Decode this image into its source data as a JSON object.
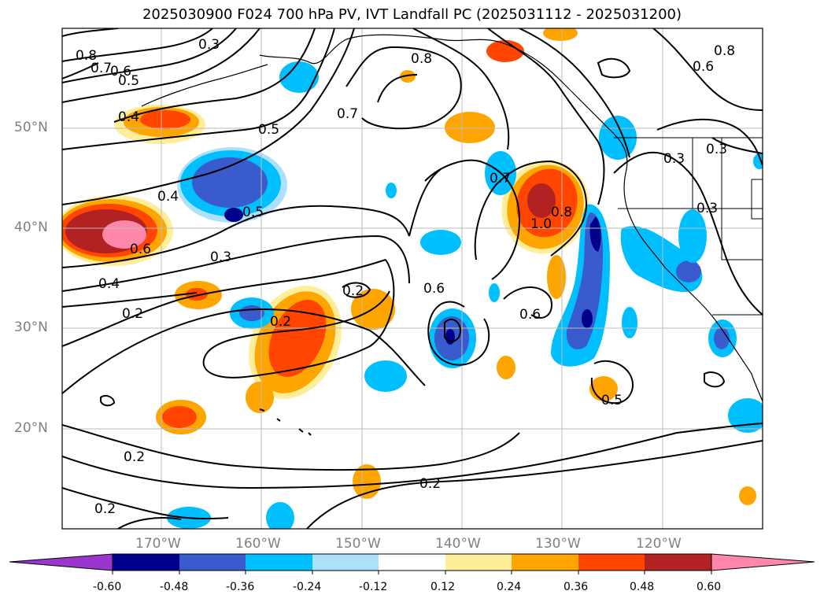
{
  "title": "2025030900 F024 700 hPa PV, IVT Landfall PC (2025031112 - 2025031200)",
  "lat_labels": [
    "50°N",
    "40°N",
    "30°N",
    "20°N"
  ],
  "lon_labels": [
    "170°W",
    "160°W",
    "150°W",
    "140°W",
    "130°W",
    "120°W"
  ],
  "contour_labels": [
    "0.8",
    "0.7",
    "0.6",
    "0.5",
    "0.4",
    "0.3",
    "0.8",
    "0.7",
    "0.5",
    "0.4",
    "0.5",
    "0.6",
    "0.3",
    "0.4",
    "0.2",
    "0.2",
    "0.2",
    "0.6",
    "0.6",
    "0.7",
    "1.0",
    "0.8",
    "0.8",
    "0.6",
    "0.5",
    "0.3",
    "0.3",
    "0.2",
    "0.2",
    "0.2",
    "0.3"
  ],
  "colorbar": {
    "tick_labels": [
      "-0.60",
      "-0.48",
      "-0.36",
      "-0.24",
      "-0.12",
      "0.12",
      "0.24",
      "0.36",
      "0.48",
      "0.60"
    ],
    "colors": [
      "#9a36cd",
      "#00008b",
      "#3a5bcd",
      "#00bfff",
      "#ade1fb",
      "#ffffff",
      "#ffee99",
      "#ffa500",
      "#ff4500",
      "#b22222",
      "#ff88aa"
    ]
  }
}
